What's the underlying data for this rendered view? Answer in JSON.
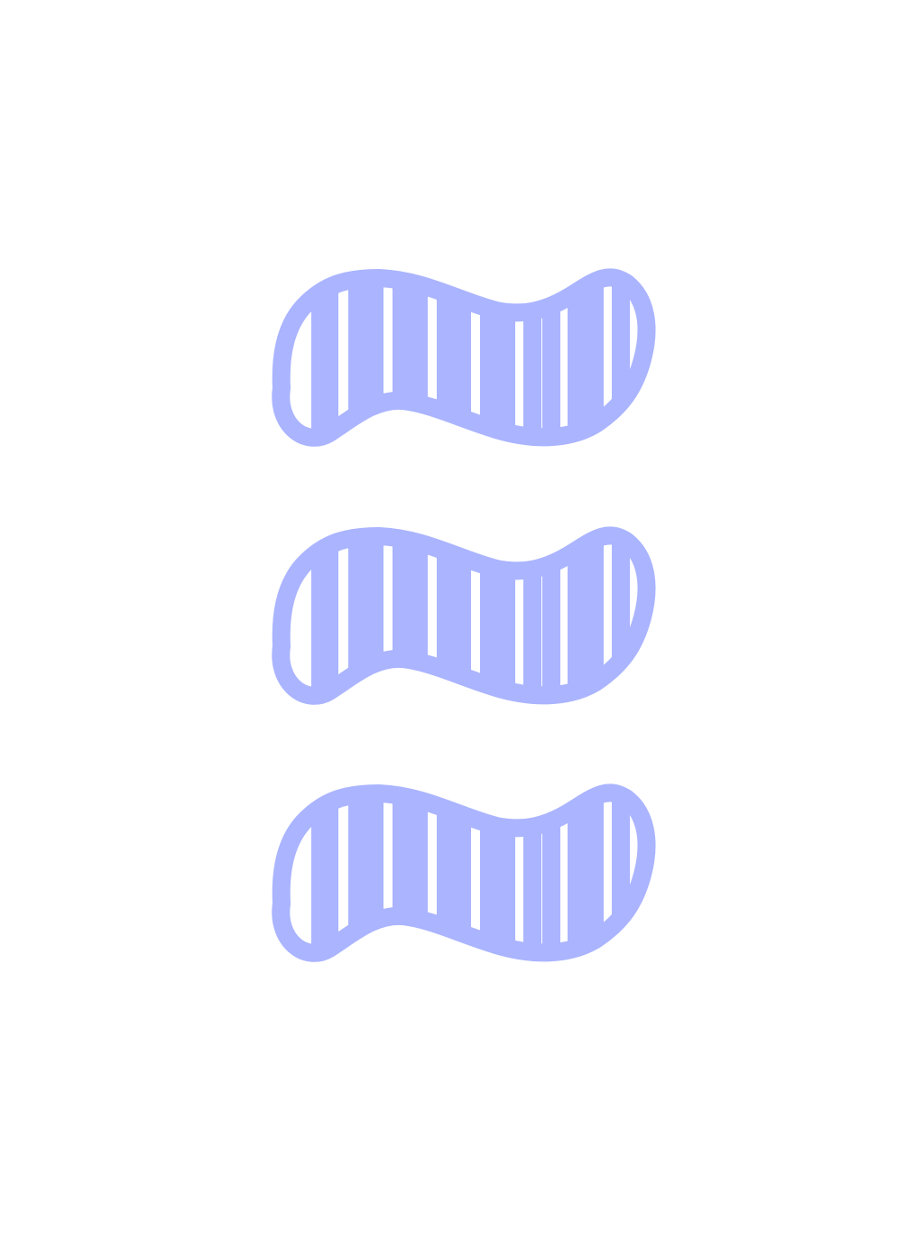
{
  "canvas": {
    "background": "#ffffff"
  },
  "shapes": {
    "count": 3,
    "icon_name": "striped-wave-shape-icon",
    "stroke_color": "#aab4ff"
  }
}
